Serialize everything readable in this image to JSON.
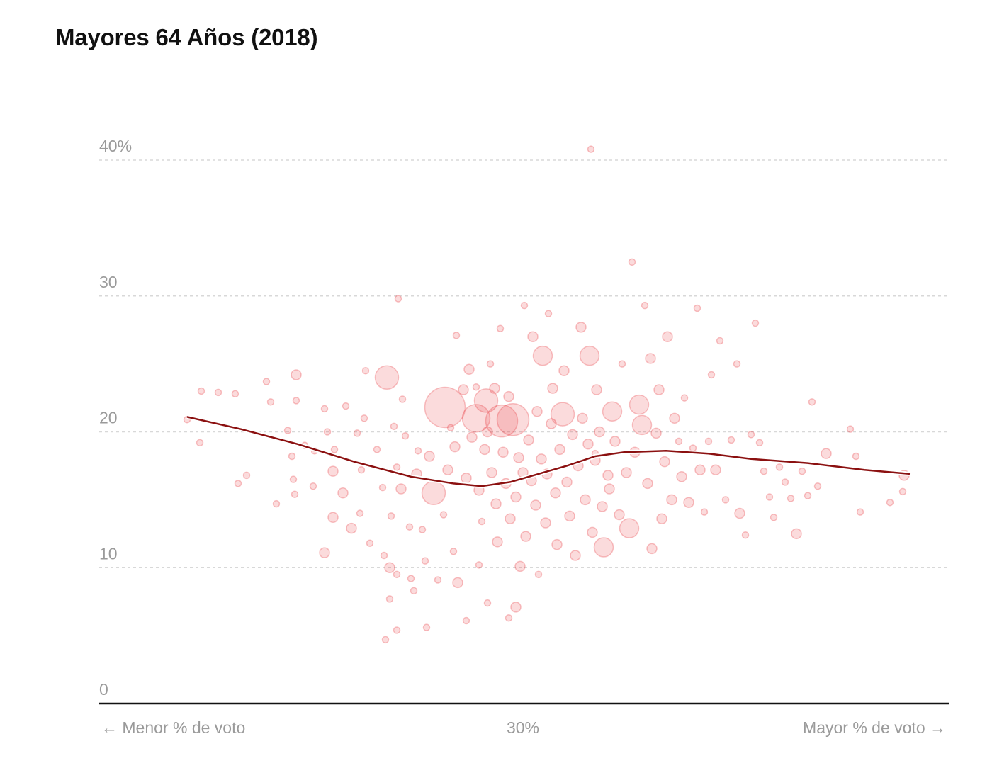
{
  "chart_data": {
    "type": "scatter",
    "title": "Mayores 64 Años (2018)",
    "xlabel_left": "← Menor % de voto",
    "xlabel_center": "30%",
    "xlabel_right": "Mayor % de voto →",
    "ylabel": "",
    "ylim": [
      0,
      40
    ],
    "y_ticks": [
      {
        "value": 0,
        "label": "0"
      },
      {
        "value": 10,
        "label": "10"
      },
      {
        "value": 20,
        "label": "20"
      },
      {
        "value": 30,
        "label": "30"
      },
      {
        "value": 40,
        "label": "40%"
      }
    ],
    "xlim": [
      0,
      60
    ],
    "grid": true,
    "colors": {
      "points": "#e8393f",
      "trend": "#8b1010",
      "axis": "#111111",
      "grid": "#d8d8d8"
    },
    "trend": [
      {
        "x": 6.2,
        "y": 21.1
      },
      {
        "x": 10,
        "y": 20.2
      },
      {
        "x": 14,
        "y": 19.1
      },
      {
        "x": 18,
        "y": 17.8
      },
      {
        "x": 22,
        "y": 16.7
      },
      {
        "x": 25,
        "y": 16.2
      },
      {
        "x": 27,
        "y": 16.0
      },
      {
        "x": 29,
        "y": 16.3
      },
      {
        "x": 31,
        "y": 16.9
      },
      {
        "x": 33,
        "y": 17.5
      },
      {
        "x": 35,
        "y": 18.2
      },
      {
        "x": 37,
        "y": 18.5
      },
      {
        "x": 40,
        "y": 18.6
      },
      {
        "x": 43,
        "y": 18.4
      },
      {
        "x": 46,
        "y": 18.0
      },
      {
        "x": 50,
        "y": 17.7
      },
      {
        "x": 54,
        "y": 17.2
      },
      {
        "x": 57.2,
        "y": 16.9
      }
    ],
    "points": [
      [
        6.2,
        20.9,
        1
      ],
      [
        7.2,
        23.0,
        1
      ],
      [
        7.1,
        19.2,
        1
      ],
      [
        8.4,
        22.9,
        1
      ],
      [
        9.6,
        22.8,
        1
      ],
      [
        9.8,
        16.2,
        1
      ],
      [
        10.4,
        16.8,
        1
      ],
      [
        11.8,
        23.7,
        1
      ],
      [
        12.1,
        22.2,
        1
      ],
      [
        12.5,
        14.7,
        1
      ],
      [
        13.9,
        24.2,
        2
      ],
      [
        13.9,
        22.3,
        1
      ],
      [
        13.3,
        20.1,
        1
      ],
      [
        13.6,
        18.2,
        1
      ],
      [
        13.7,
        16.5,
        1
      ],
      [
        13.8,
        15.4,
        1
      ],
      [
        14.5,
        19.0,
        1
      ],
      [
        15.2,
        18.6,
        1
      ],
      [
        15.1,
        16.0,
        1
      ],
      [
        15.9,
        21.7,
        1
      ],
      [
        16.1,
        20.0,
        1
      ],
      [
        16.6,
        18.7,
        1
      ],
      [
        16.5,
        17.1,
        2
      ],
      [
        16.5,
        13.7,
        2
      ],
      [
        15.9,
        11.1,
        2
      ],
      [
        17.2,
        15.5,
        2
      ],
      [
        17.8,
        12.9,
        2
      ],
      [
        17.4,
        21.9,
        1
      ],
      [
        18.2,
        19.9,
        1
      ],
      [
        18.5,
        17.2,
        1
      ],
      [
        18.8,
        24.5,
        1
      ],
      [
        18.4,
        14.0,
        1
      ],
      [
        18.7,
        21.0,
        1
      ],
      [
        19.1,
        11.8,
        1
      ],
      [
        19.6,
        18.7,
        1
      ],
      [
        20.0,
        15.9,
        1
      ],
      [
        20.3,
        24.0,
        4
      ],
      [
        20.1,
        10.9,
        1
      ],
      [
        20.6,
        13.8,
        1
      ],
      [
        20.8,
        20.4,
        1
      ],
      [
        20.5,
        10.0,
        2
      ],
      [
        21.0,
        17.4,
        1
      ],
      [
        21.1,
        29.8,
        1
      ],
      [
        21.0,
        9.5,
        1
      ],
      [
        21.4,
        22.4,
        1
      ],
      [
        21.6,
        19.7,
        1
      ],
      [
        21.3,
        15.8,
        2
      ],
      [
        21.9,
        13.0,
        1
      ],
      [
        22.2,
        8.3,
        1
      ],
      [
        20.5,
        7.7,
        1
      ],
      [
        20.2,
        4.7,
        1
      ],
      [
        21.0,
        5.4,
        1
      ],
      [
        22.5,
        18.6,
        1
      ],
      [
        22.4,
        16.9,
        2
      ],
      [
        22.8,
        12.8,
        1
      ],
      [
        23.0,
        10.5,
        1
      ],
      [
        23.3,
        18.2,
        2
      ],
      [
        23.1,
        5.6,
        1
      ],
      [
        23.6,
        15.5,
        4
      ],
      [
        23.9,
        9.1,
        1
      ],
      [
        24.4,
        21.8,
        8
      ],
      [
        24.6,
        17.2,
        2
      ],
      [
        24.3,
        13.9,
        1
      ],
      [
        24.8,
        20.3,
        1
      ],
      [
        25.1,
        18.9,
        2
      ],
      [
        25.2,
        27.1,
        1
      ],
      [
        25.0,
        11.2,
        1
      ],
      [
        25.3,
        8.9,
        2
      ],
      [
        25.7,
        23.1,
        2
      ],
      [
        25.9,
        16.6,
        2
      ],
      [
        26.1,
        24.6,
        2
      ],
      [
        25.9,
        6.1,
        1
      ],
      [
        26.3,
        19.6,
        2
      ],
      [
        26.6,
        21.0,
        5
      ],
      [
        26.8,
        15.7,
        2
      ],
      [
        27.0,
        13.4,
        1
      ],
      [
        26.8,
        10.2,
        1
      ],
      [
        27.2,
        18.7,
        2
      ],
      [
        27.4,
        20.0,
        2
      ],
      [
        27.6,
        25.0,
        1
      ],
      [
        27.9,
        23.2,
        2
      ],
      [
        27.7,
        17.0,
        2
      ],
      [
        28.0,
        14.7,
        2
      ],
      [
        28.1,
        11.9,
        2
      ],
      [
        28.3,
        27.6,
        1
      ],
      [
        28.4,
        20.8,
        6
      ],
      [
        28.5,
        18.5,
        2
      ],
      [
        28.7,
        16.2,
        2
      ],
      [
        28.9,
        22.6,
        2
      ],
      [
        29.0,
        13.6,
        2
      ],
      [
        29.2,
        20.9,
        6
      ],
      [
        29.4,
        15.2,
        2
      ],
      [
        29.6,
        18.1,
        2
      ],
      [
        29.7,
        10.1,
        2
      ],
      [
        29.9,
        17.0,
        2
      ],
      [
        30.0,
        29.3,
        1
      ],
      [
        30.1,
        12.3,
        2
      ],
      [
        30.3,
        19.4,
        2
      ],
      [
        30.5,
        16.4,
        2
      ],
      [
        30.6,
        27.0,
        2
      ],
      [
        30.8,
        14.6,
        2
      ],
      [
        30.9,
        21.5,
        2
      ],
      [
        31.0,
        9.5,
        1
      ],
      [
        31.2,
        18.0,
        2
      ],
      [
        31.3,
        25.6,
        3
      ],
      [
        31.5,
        13.3,
        2
      ],
      [
        31.6,
        16.9,
        2
      ],
      [
        31.7,
        28.7,
        1
      ],
      [
        31.9,
        20.6,
        2
      ],
      [
        32.0,
        23.2,
        2
      ],
      [
        32.2,
        15.5,
        2
      ],
      [
        32.3,
        11.7,
        2
      ],
      [
        32.5,
        18.7,
        2
      ],
      [
        32.7,
        21.3,
        4
      ],
      [
        32.8,
        24.5,
        2
      ],
      [
        33.0,
        16.3,
        2
      ],
      [
        33.2,
        13.8,
        2
      ],
      [
        33.4,
        19.8,
        2
      ],
      [
        33.6,
        10.9,
        2
      ],
      [
        33.8,
        17.5,
        2
      ],
      [
        34.0,
        27.7,
        2
      ],
      [
        34.1,
        21.0,
        2
      ],
      [
        34.3,
        15.0,
        2
      ],
      [
        34.5,
        19.1,
        2
      ],
      [
        34.6,
        25.6,
        3
      ],
      [
        34.7,
        40.8,
        1
      ],
      [
        34.8,
        12.6,
        2
      ],
      [
        35.0,
        17.9,
        2
      ],
      [
        35.1,
        23.1,
        2
      ],
      [
        35.3,
        20.0,
        2
      ],
      [
        35.5,
        14.5,
        2
      ],
      [
        35.6,
        11.5,
        3
      ],
      [
        35.9,
        16.8,
        2
      ],
      [
        36.2,
        21.5,
        3
      ],
      [
        36.4,
        19.3,
        2
      ],
      [
        36.7,
        13.9,
        2
      ],
      [
        36.9,
        25.0,
        1
      ],
      [
        37.2,
        17.0,
        2
      ],
      [
        37.4,
        12.9,
        3
      ],
      [
        37.6,
        32.5,
        1
      ],
      [
        37.8,
        18.5,
        2
      ],
      [
        38.1,
        22.0,
        3
      ],
      [
        38.3,
        20.5,
        3
      ],
      [
        38.5,
        29.3,
        1
      ],
      [
        38.7,
        16.2,
        2
      ],
      [
        38.9,
        25.4,
        2
      ],
      [
        39.0,
        11.4,
        2
      ],
      [
        39.3,
        19.9,
        2
      ],
      [
        39.5,
        23.1,
        2
      ],
      [
        39.7,
        13.6,
        2
      ],
      [
        39.9,
        17.8,
        2
      ],
      [
        40.1,
        27.0,
        2
      ],
      [
        40.4,
        15.0,
        2
      ],
      [
        40.6,
        21.0,
        2
      ],
      [
        40.9,
        19.3,
        1
      ],
      [
        41.1,
        16.7,
        2
      ],
      [
        41.3,
        22.5,
        1
      ],
      [
        41.6,
        14.8,
        2
      ],
      [
        41.9,
        18.8,
        1
      ],
      [
        42.2,
        29.1,
        1
      ],
      [
        42.4,
        17.2,
        2
      ],
      [
        42.7,
        14.1,
        1
      ],
      [
        43.0,
        19.3,
        1
      ],
      [
        43.2,
        24.2,
        1
      ],
      [
        43.5,
        17.2,
        2
      ],
      [
        43.8,
        26.7,
        1
      ],
      [
        44.2,
        15.0,
        1
      ],
      [
        44.6,
        19.4,
        1
      ],
      [
        45.0,
        25.0,
        1
      ],
      [
        45.2,
        14.0,
        2
      ],
      [
        45.6,
        12.4,
        1
      ],
      [
        46.0,
        19.8,
        1
      ],
      [
        46.3,
        28.0,
        1
      ],
      [
        46.6,
        19.2,
        1
      ],
      [
        46.9,
        17.1,
        1
      ],
      [
        47.3,
        15.2,
        1
      ],
      [
        47.6,
        13.7,
        1
      ],
      [
        48.0,
        17.4,
        1
      ],
      [
        48.4,
        16.3,
        1
      ],
      [
        48.8,
        15.1,
        1
      ],
      [
        49.2,
        12.5,
        2
      ],
      [
        49.6,
        17.1,
        1
      ],
      [
        50.0,
        15.3,
        1
      ],
      [
        50.3,
        22.2,
        1
      ],
      [
        50.7,
        16.0,
        1
      ],
      [
        51.3,
        18.4,
        2
      ],
      [
        53.0,
        20.2,
        1
      ],
      [
        53.4,
        18.2,
        1
      ],
      [
        53.7,
        14.1,
        1
      ],
      [
        55.8,
        14.8,
        1
      ],
      [
        56.7,
        15.6,
        1
      ],
      [
        56.8,
        16.8,
        2
      ],
      [
        27.4,
        7.4,
        1
      ],
      [
        28.9,
        6.3,
        1
      ],
      [
        29.4,
        7.1,
        2
      ],
      [
        22.0,
        9.2,
        1
      ],
      [
        26.6,
        23.3,
        1
      ],
      [
        27.3,
        22.3,
        4
      ],
      [
        35.0,
        18.4,
        1
      ],
      [
        36.0,
        15.8,
        2
      ]
    ]
  }
}
